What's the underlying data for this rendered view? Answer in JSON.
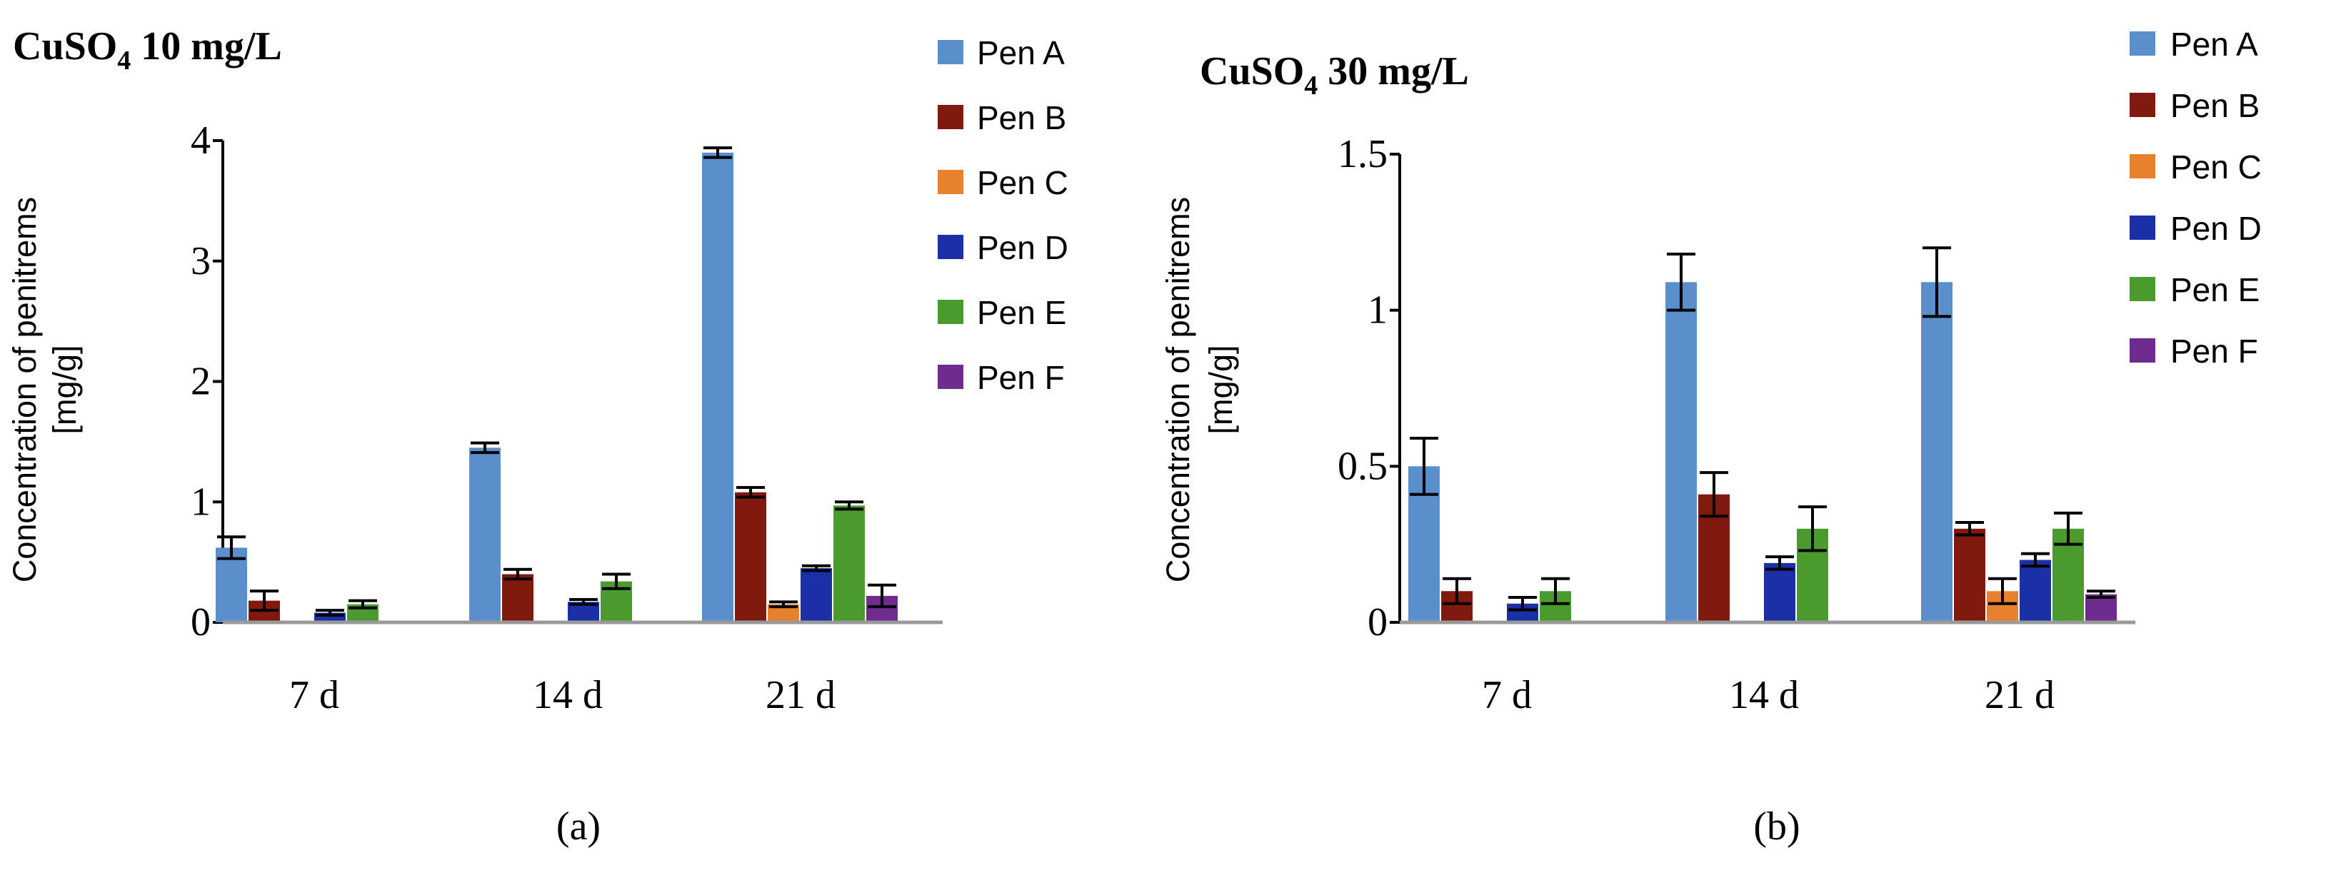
{
  "chart_data": [
    {
      "type": "bar",
      "title": "CuSO4 10 mg/L",
      "title_main": "CuSO",
      "title_sub": "4",
      "title_rest": " 10 mg/L",
      "ylabel_line1": "Concentration of penitrems",
      "ylabel_line2": "[mg/g]",
      "xlabel": "",
      "panel_label": "(a)",
      "ylim": [
        0,
        4
      ],
      "yticks": [
        0,
        1,
        2,
        3,
        4
      ],
      "ytick_labels": [
        "0",
        "1",
        "2",
        "3",
        "4"
      ],
      "grid": false,
      "legend_position": "right",
      "categories": [
        "7 d",
        "14 d",
        "21 d"
      ],
      "series": [
        {
          "name": "Pen A",
          "color": "#5B8FCB",
          "values": [
            0.62,
            1.45,
            3.9
          ],
          "errors": [
            0.09,
            0.04,
            0.04
          ]
        },
        {
          "name": "Pen B",
          "color": "#801A0E",
          "values": [
            0.18,
            0.4,
            1.08
          ],
          "errors": [
            0.08,
            0.04,
            0.04
          ]
        },
        {
          "name": "Pen C",
          "color": "#E8812E",
          "values": [
            0.0,
            0.0,
            0.15
          ],
          "errors": [
            0.0,
            0.0,
            0.02
          ]
        },
        {
          "name": "Pen D",
          "color": "#1B2FA6",
          "values": [
            0.08,
            0.17,
            0.45
          ],
          "errors": [
            0.02,
            0.02,
            0.02
          ]
        },
        {
          "name": "Pen E",
          "color": "#4A9A2E",
          "values": [
            0.15,
            0.34,
            0.97
          ],
          "errors": [
            0.03,
            0.06,
            0.03
          ]
        },
        {
          "name": "Pen F",
          "color": "#6E2C8E",
          "values": [
            0.0,
            0.0,
            0.22
          ],
          "errors": [
            0.0,
            0.0,
            0.09
          ]
        }
      ]
    },
    {
      "type": "bar",
      "title": "CuSO4 30 mg/L",
      "title_main": "CuSO",
      "title_sub": "4",
      "title_rest": " 30 mg/L",
      "ylabel_line1": "Concentration of penitrems",
      "ylabel_line2": "[mg/g]",
      "xlabel": "",
      "panel_label": "(b)",
      "ylim": [
        0,
        1.5
      ],
      "yticks": [
        0,
        0.5,
        1,
        1.5
      ],
      "ytick_labels": [
        "0",
        "0.5",
        "1",
        "1.5"
      ],
      "grid": false,
      "legend_position": "right",
      "categories": [
        "7 d",
        "14 d",
        "21 d"
      ],
      "series": [
        {
          "name": "Pen A",
          "color": "#5B8FCB",
          "values": [
            0.5,
            1.09,
            1.09
          ],
          "errors": [
            0.09,
            0.09,
            0.11
          ]
        },
        {
          "name": "Pen B",
          "color": "#801A0E",
          "values": [
            0.1,
            0.41,
            0.3
          ],
          "errors": [
            0.04,
            0.07,
            0.02
          ]
        },
        {
          "name": "Pen C",
          "color": "#E8812E",
          "values": [
            0.0,
            0.0,
            0.1
          ],
          "errors": [
            0.0,
            0.0,
            0.04
          ]
        },
        {
          "name": "Pen D",
          "color": "#1B2FA6",
          "values": [
            0.06,
            0.19,
            0.2
          ],
          "errors": [
            0.02,
            0.02,
            0.02
          ]
        },
        {
          "name": "Pen E",
          "color": "#4A9A2E",
          "values": [
            0.1,
            0.3,
            0.3
          ],
          "errors": [
            0.04,
            0.07,
            0.05
          ]
        },
        {
          "name": "Pen F",
          "color": "#6E2C8E",
          "values": [
            0.0,
            0.0,
            0.09
          ],
          "errors": [
            0.0,
            0.0,
            0.01
          ]
        }
      ]
    }
  ]
}
